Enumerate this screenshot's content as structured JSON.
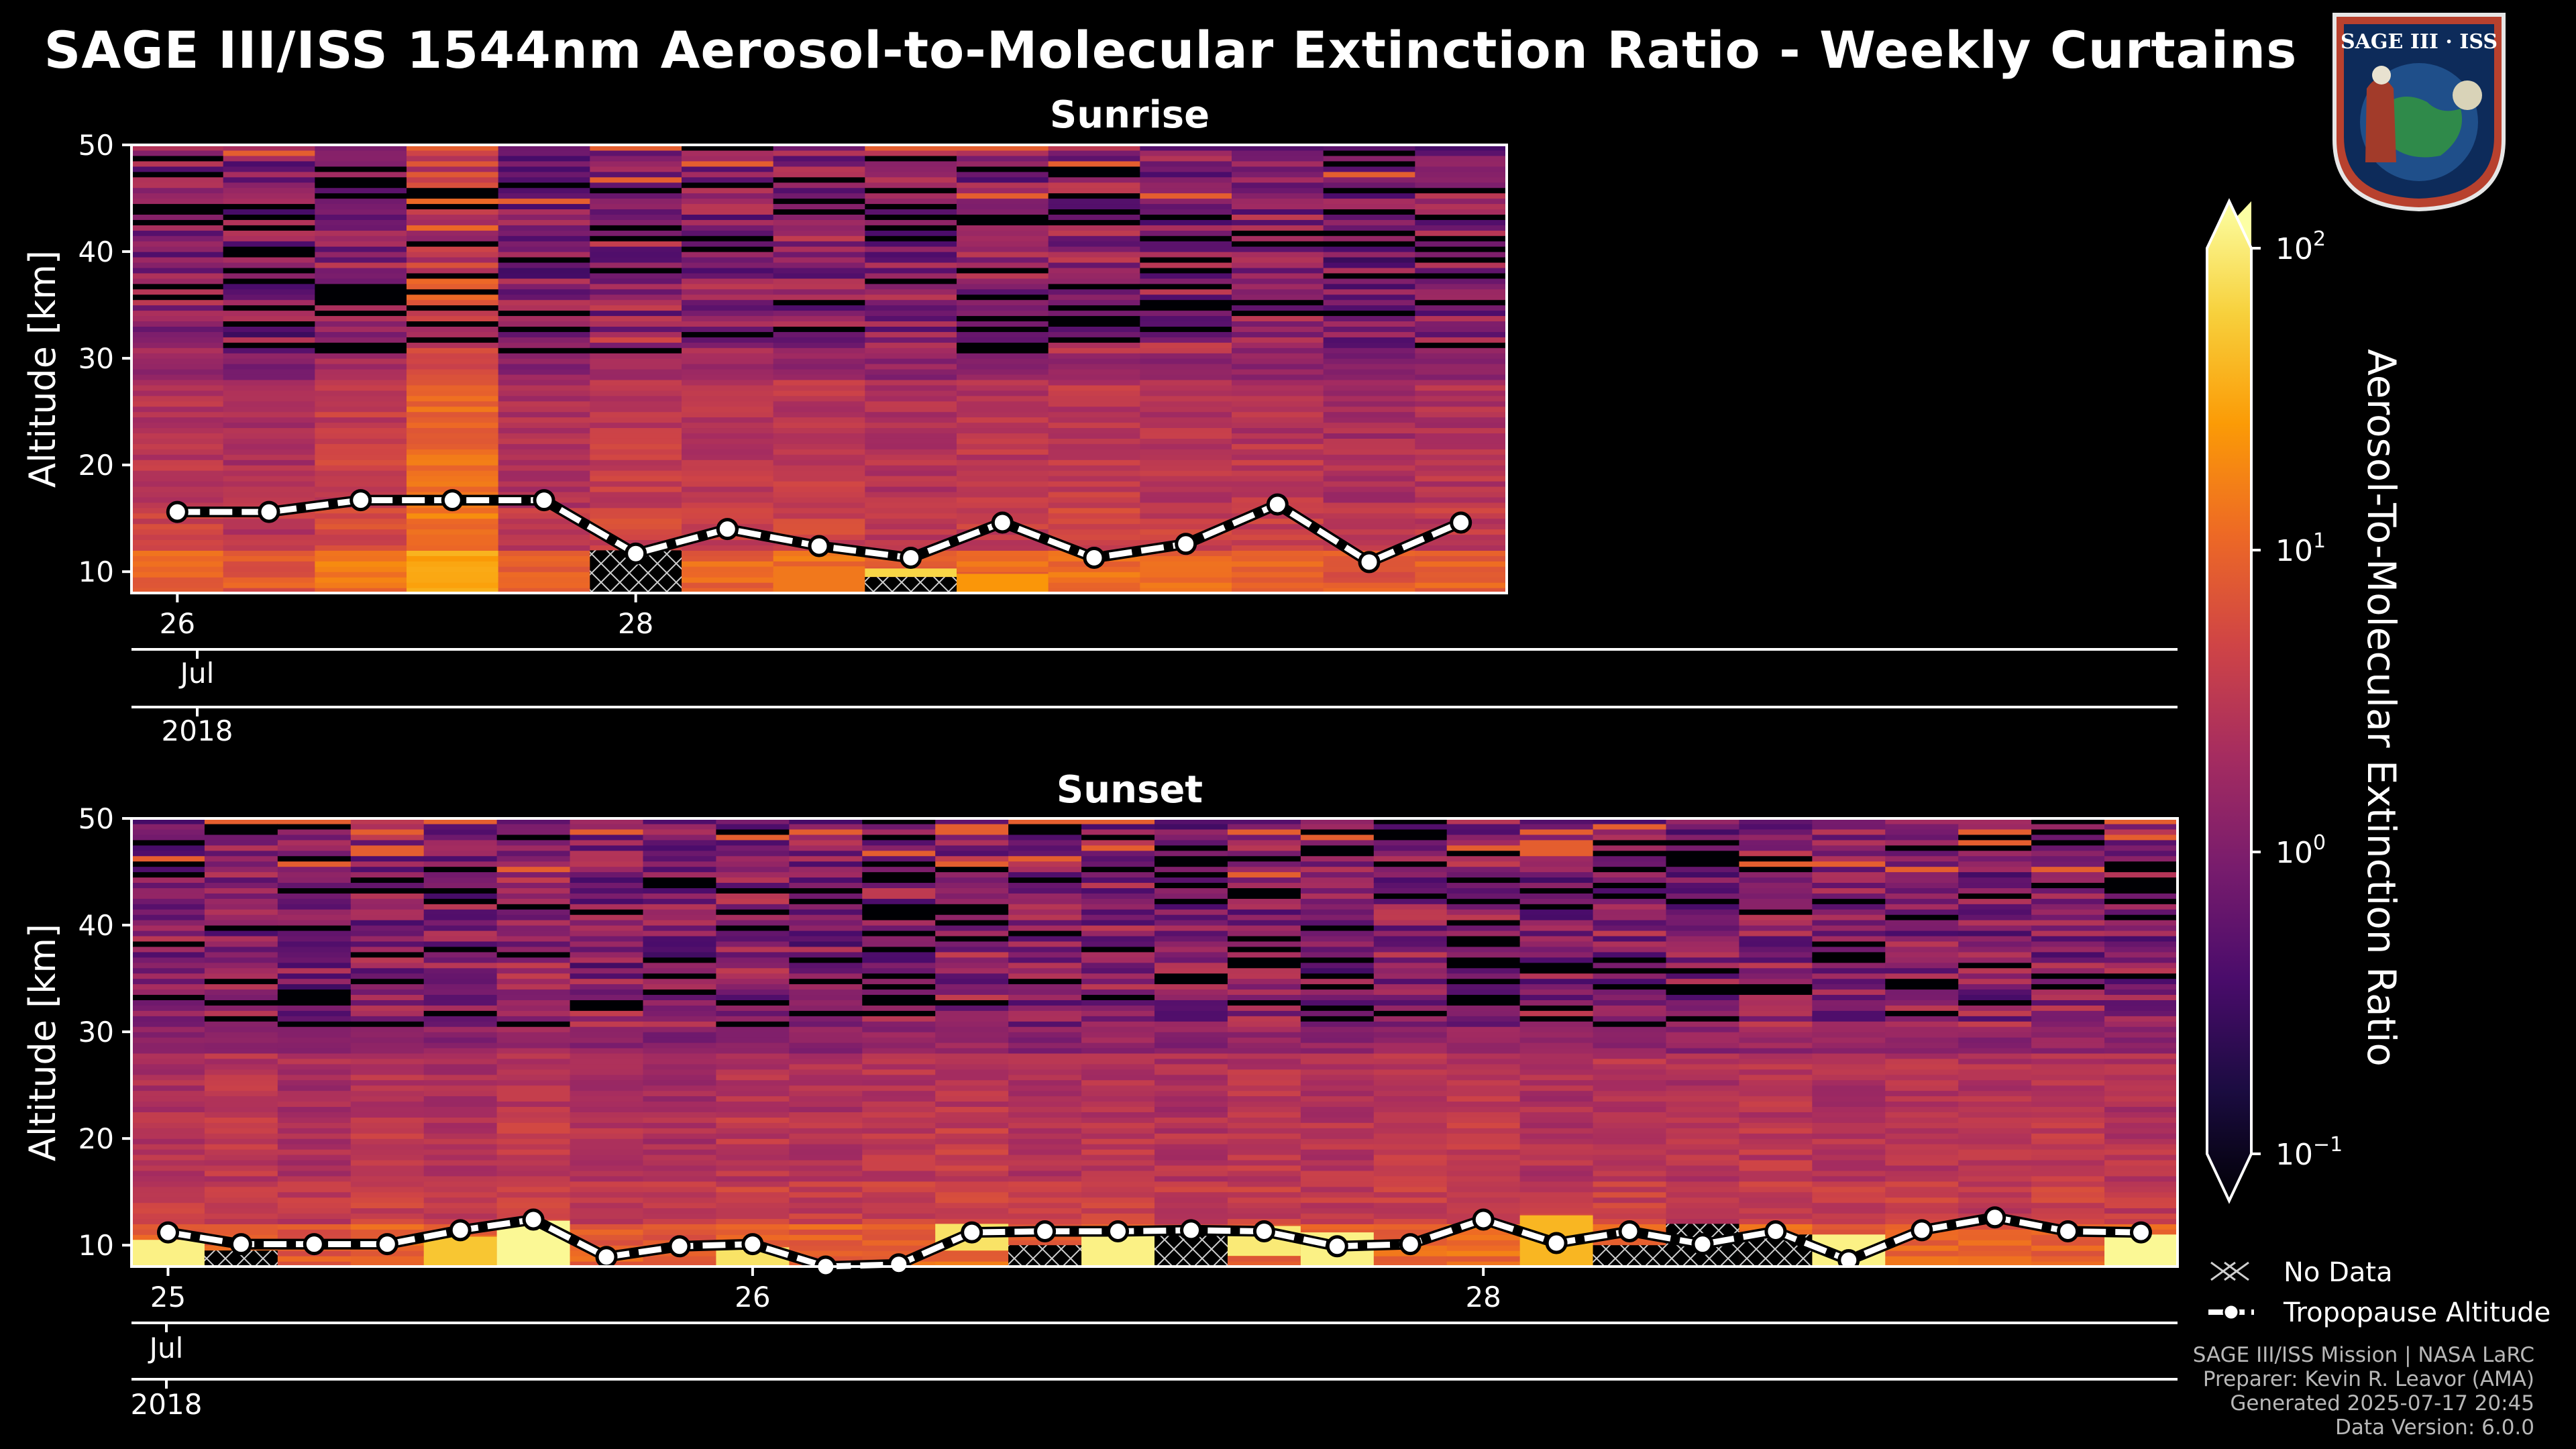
{
  "title": "SAGE III/ISS 1544nm Aerosol-to-Molecular Extinction Ratio - Weekly Curtains",
  "logo": {
    "text": "SAGE III · ISS"
  },
  "colors": {
    "background": "#000000",
    "tropopause": "#ffffff",
    "text": "#ffffff",
    "footer": "#b8b8b8"
  },
  "colormap": [
    "#000004",
    "#1b0c41",
    "#4a0c6b",
    "#781c6d",
    "#a52c60",
    "#cf4446",
    "#ed6925",
    "#fb9b06",
    "#f7d13d",
    "#fcffa4"
  ],
  "chart_data": [
    {
      "type": "heatmap",
      "title": "Sunrise",
      "ylabel": "Altitude [km]",
      "ylim": [
        8,
        50
      ],
      "yticks": [
        10,
        20,
        30,
        40,
        50
      ],
      "n_columns": 15,
      "xticks": [
        {
          "label": "26",
          "col": 0.5
        },
        {
          "label": "28",
          "col": 5.5
        }
      ],
      "month_label": "Jul",
      "year_label": "2018",
      "tropopause_km": [
        15.6,
        15.6,
        16.7,
        16.7,
        16.7,
        11.7,
        14.0,
        12.4,
        11.3,
        14.6,
        11.3,
        12.6,
        16.3,
        10.9,
        14.6
      ],
      "no_data": [
        {
          "col": 5,
          "from_km": 8,
          "to_km": 12
        },
        {
          "col": 8,
          "from_km": 8,
          "to_km": 9.5
        }
      ],
      "column_log10_offset": [
        0.05,
        -0.05,
        0.15,
        0.55,
        0.0,
        0.1,
        0.05,
        0.1,
        0.0,
        0.05,
        0.1,
        0.05,
        0.05,
        -0.05,
        0.0
      ],
      "surface_bands": [
        {
          "col": 7,
          "from_km": 8,
          "to_km": 10.5,
          "log10": 1.1
        },
        {
          "col": 8,
          "from_km": 9.5,
          "to_km": 10.3,
          "log10": 1.7
        },
        {
          "col": 9,
          "from_km": 8,
          "to_km": 9.8,
          "log10": 1.3
        }
      ]
    },
    {
      "type": "heatmap",
      "title": "Sunset",
      "ylabel": "Altitude [km]",
      "ylim": [
        8,
        50
      ],
      "yticks": [
        10,
        20,
        30,
        40,
        50
      ],
      "n_columns": 28,
      "xticks": [
        {
          "label": "25",
          "col": 0.5
        },
        {
          "label": "26",
          "col": 8.5
        },
        {
          "label": "28",
          "col": 18.5
        }
      ],
      "month_label": "Jul",
      "year_label": "2018",
      "tropopause_km": [
        11.2,
        10.1,
        10.1,
        10.1,
        11.4,
        12.4,
        8.9,
        9.9,
        10.1,
        7.6,
        8.2,
        11.2,
        11.3,
        11.3,
        11.4,
        11.3,
        9.9,
        10.1,
        12.4,
        10.2,
        11.3,
        10.1,
        11.3,
        8.6,
        11.4,
        12.6,
        11.3,
        11.2
      ],
      "no_data": [
        {
          "col": 1,
          "from_km": 8,
          "to_km": 9.5
        },
        {
          "col": 12,
          "from_km": 8,
          "to_km": 10
        },
        {
          "col": 14,
          "from_km": 8,
          "to_km": 11
        },
        {
          "col": 20,
          "from_km": 8,
          "to_km": 10
        },
        {
          "col": 21,
          "from_km": 8,
          "to_km": 12
        },
        {
          "col": 22,
          "from_km": 8,
          "to_km": 11
        }
      ],
      "column_log10_offset": [
        0.0,
        0.05,
        -0.05,
        0.05,
        0.0,
        0.1,
        0.0,
        -0.05,
        0.05,
        0.0,
        0.05,
        0.1,
        0.0,
        0.05,
        0.0,
        0.05,
        0.0,
        0.05,
        0.1,
        0.0,
        0.05,
        0.0,
        0.05,
        0.0,
        0.05,
        0.0,
        0.05,
        0.0
      ],
      "surface_bands": [
        {
          "col": 0,
          "from_km": 8,
          "to_km": 10.5,
          "log10": 1.9
        },
        {
          "col": 4,
          "from_km": 8,
          "to_km": 10.8,
          "log10": 1.6
        },
        {
          "col": 5,
          "from_km": 8,
          "to_km": 12.3,
          "log10": 1.95
        },
        {
          "col": 8,
          "from_km": 8,
          "to_km": 9.8,
          "log10": 1.8
        },
        {
          "col": 11,
          "from_km": 9.5,
          "to_km": 12,
          "log10": 1.8
        },
        {
          "col": 13,
          "from_km": 8,
          "to_km": 11.5,
          "log10": 1.9
        },
        {
          "col": 15,
          "from_km": 9,
          "to_km": 11.8,
          "log10": 1.85
        },
        {
          "col": 16,
          "from_km": 8,
          "to_km": 11.2,
          "log10": 1.9
        },
        {
          "col": 19,
          "from_km": 8,
          "to_km": 12.8,
          "log10": 1.5
        },
        {
          "col": 23,
          "from_km": 8,
          "to_km": 11,
          "log10": 1.9
        },
        {
          "col": 27,
          "from_km": 8,
          "to_km": 11,
          "log10": 1.95
        }
      ]
    }
  ],
  "colorbar": {
    "label": "Aerosol-To-Molecular Extinction Ratio",
    "scale": "log",
    "range": [
      0.1,
      100
    ],
    "ticks": [
      {
        "base": "10",
        "exp": "2",
        "log10": 2
      },
      {
        "base": "10",
        "exp": "1",
        "log10": 1
      },
      {
        "base": "10",
        "exp": "0",
        "log10": 0
      },
      {
        "base": "10",
        "exp": "−1",
        "log10": -1
      }
    ]
  },
  "legend": {
    "no_data": "No Data",
    "tropopause": "Tropopause Altitude"
  },
  "footer": {
    "line1": "SAGE III/ISS Mission | NASA LaRC",
    "line2": "Preparer: Kevin R. Leavor (AMA)",
    "line3": "Generated 2025-07-17 20:45",
    "line4": "Data Version: 6.0.0"
  }
}
